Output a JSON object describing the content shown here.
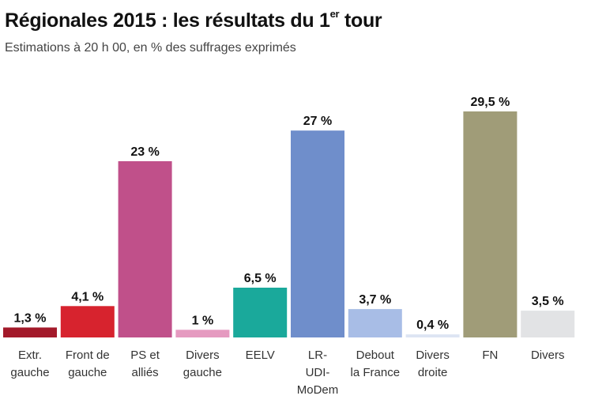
{
  "chart_data": {
    "type": "bar",
    "title": "Régionales 2015 : les résultats du 1",
    "title_sup": "er",
    "title_end": " tour",
    "subtitle": "Estimations à 20 h 00, en % des suffrages exprimés",
    "categories": [
      [
        "Extr.",
        "gauche"
      ],
      [
        "Front de",
        "gauche"
      ],
      [
        "PS et",
        "alliés"
      ],
      [
        "Divers",
        "gauche"
      ],
      [
        "EELV"
      ],
      [
        "LR-",
        "UDI-",
        "MoDem"
      ],
      [
        "Debout",
        "la France"
      ],
      [
        "Divers",
        "droite"
      ],
      [
        "FN"
      ],
      [
        "Divers"
      ]
    ],
    "values": [
      1.3,
      4.1,
      23,
      1,
      6.5,
      27,
      3.7,
      0.4,
      29.5,
      3.5
    ],
    "value_labels": [
      "1,3 %",
      "4,1 %",
      "23 %",
      "1 %",
      "6,5 %",
      "27 %",
      "3,7 %",
      "0,4 %",
      "29,5 %",
      "3,5 %"
    ],
    "colors": [
      "#a3192a",
      "#d7232e",
      "#c0508a",
      "#e59ac0",
      "#1aa99b",
      "#6f8ecb",
      "#a8bde6",
      "#dde5f3",
      "#a09c78",
      "#e2e3e5"
    ],
    "ylim": [
      0,
      29.5
    ],
    "grid": false,
    "legend": "none"
  }
}
